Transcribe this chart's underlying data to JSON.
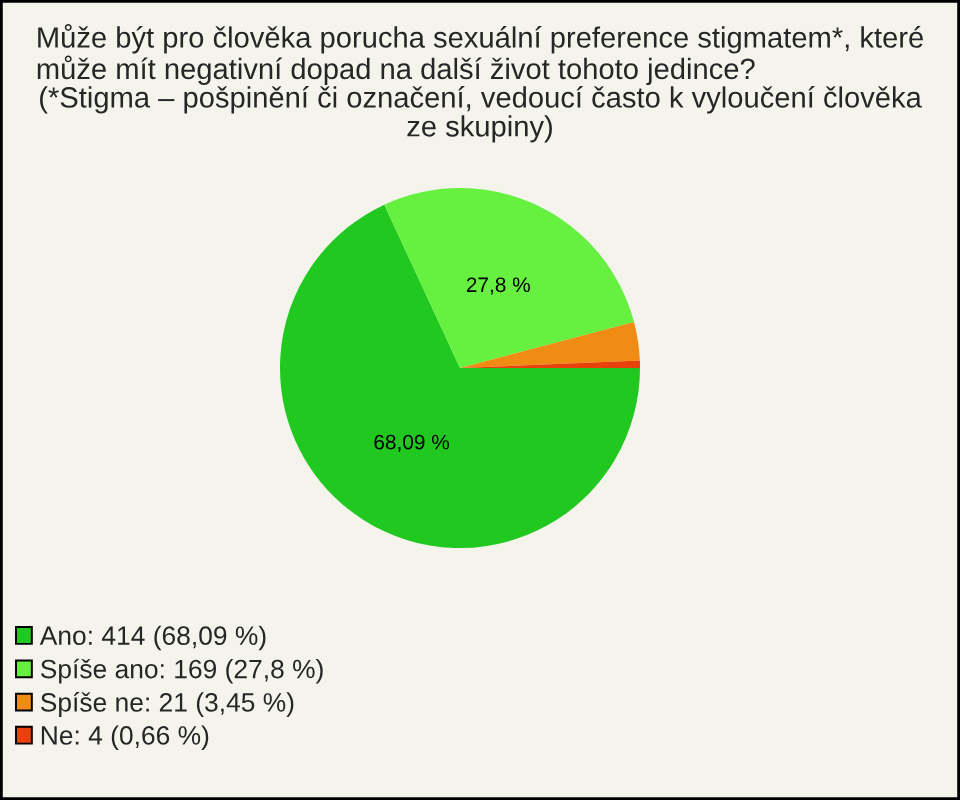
{
  "chart_data": {
    "type": "pie",
    "title": "Může být pro člověka porucha sexuální preference stigmatem*, které\nmůže mít negativní dopad na další život tohoto jedince?",
    "subtitle": "(*Stigma – pošpinění či označení, vedoucí často k vyloučení člověka\nze skupiny)",
    "categories": [
      "Ano: 414 (68,09 %)",
      "Spíše ano: 169 (27,8 %)",
      "Spíše ne: 21 (3,45 %)",
      "Ne: 4 (0,66 %)"
    ],
    "values": [
      68.09,
      27.8,
      3.45,
      0.66
    ],
    "colors": [
      "#20c820",
      "#66f040",
      "#f08c14",
      "#e8420c"
    ],
    "value_labels": [
      "68,09 %",
      "27,8 %",
      null,
      null
    ],
    "legend": "bottom left"
  }
}
